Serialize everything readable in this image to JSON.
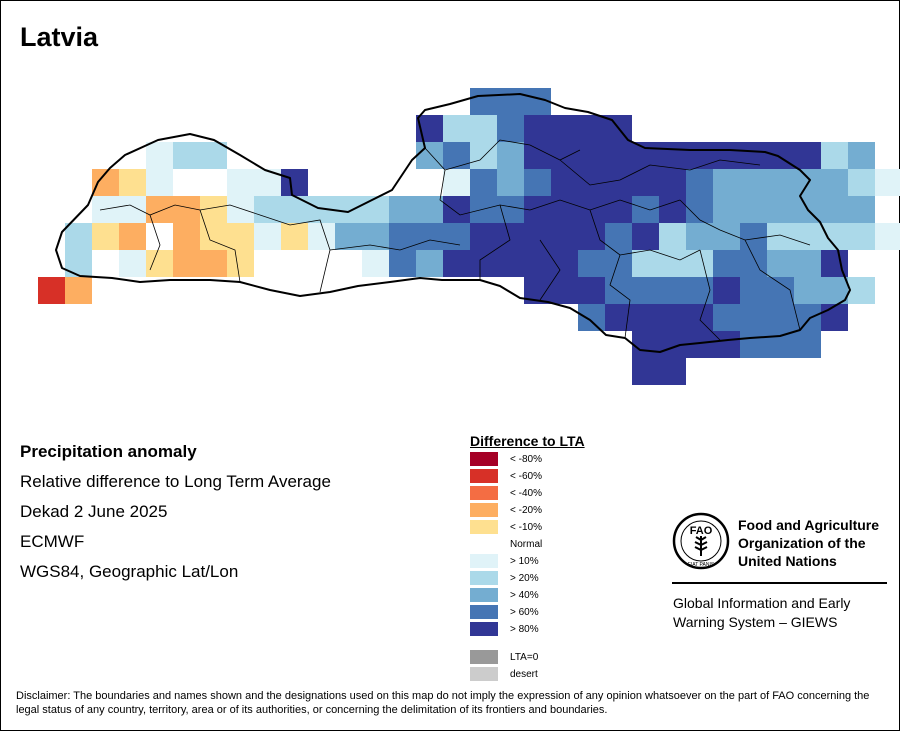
{
  "title": "Latvia",
  "colors": {
    "lt_minus80": "#a50026",
    "lt_minus60": "#d73027",
    "lt_minus40": "#f46d43",
    "lt_minus20": "#fdae61",
    "lt_minus10": "#fee090",
    "normal": "#ffffff",
    "gt10": "#e0f3f8",
    "gt20": "#abd9e9",
    "gt40": "#74add1",
    "gt60": "#4575b4",
    "gt80": "#313695",
    "lta0": "#999999",
    "desert": "#cccccc"
  },
  "info": {
    "heading": "Precipitation anomaly",
    "line1": "Relative difference to Long Term Average",
    "line2": "Dekad 2 June 2025",
    "line3": "ECMWF",
    "line4": "WGS84, Geographic Lat/Lon"
  },
  "legend": {
    "title": "Difference to LTA",
    "items": [
      {
        "label": "< -80%",
        "color": "#a50026"
      },
      {
        "label": "< -60%",
        "color": "#d73027"
      },
      {
        "label": "< -40%",
        "color": "#f46d43"
      },
      {
        "label": "< -20%",
        "color": "#fdae61"
      },
      {
        "label": "< -10%",
        "color": "#fee090"
      },
      {
        "label": "Normal",
        "color": "#ffffff"
      },
      {
        "label": "> 10%",
        "color": "#e0f3f8"
      },
      {
        "label": "> 20%",
        "color": "#abd9e9"
      },
      {
        "label": "> 40%",
        "color": "#74add1"
      },
      {
        "label": "> 60%",
        "color": "#4575b4"
      },
      {
        "label": "> 80%",
        "color": "#313695"
      },
      {
        "label": "LTA=0",
        "color": "#999999"
      },
      {
        "label": "desert",
        "color": "#cccccc"
      }
    ]
  },
  "org": {
    "logo_text": "FAO",
    "logo_motto": "FIAT PANIS",
    "name_line1": "Food and Agriculture",
    "name_line2": "Organization of the",
    "name_line3": "United Nations",
    "giews_line1": "Global Information and Early",
    "giews_line2": "Warning System – GIEWS"
  },
  "disclaimer": "Disclaimer: The boundaries and names shown and the designations used on this map do not imply the expression of any opinion whatsoever on the part of FAO concerning the legal status of any country, territory, area or of its authorities, or concerning the delimitation of its frontiers and boundaries."
}
